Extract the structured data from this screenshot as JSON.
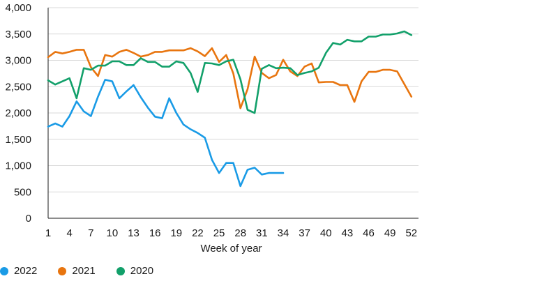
{
  "chart_data": {
    "type": "line",
    "title": "",
    "xlabel": "Week of year",
    "ylabel": "",
    "xlim": [
      1,
      53
    ],
    "ylim": [
      0,
      4000
    ],
    "grid": "horizontal",
    "legend_position": "bottom-left",
    "x_ticks": [
      1,
      4,
      7,
      10,
      13,
      16,
      19,
      22,
      25,
      28,
      31,
      34,
      37,
      40,
      43,
      46,
      49,
      52
    ],
    "x_tick_labels": [
      "1",
      "4",
      "7",
      "10",
      "13",
      "16",
      "19",
      "22",
      "25",
      "28",
      "31",
      "34",
      "37",
      "40",
      "43",
      "46",
      "49",
      "52"
    ],
    "y_ticks": [
      0,
      500,
      1000,
      1500,
      2000,
      2500,
      3000,
      3500,
      4000
    ],
    "y_tick_labels": [
      "0",
      "500",
      "1,000",
      "1,500",
      "2,000",
      "2,500",
      "3,000",
      "3,500",
      "4,000"
    ],
    "series": [
      {
        "name": "2022",
        "color": "#1a9be6",
        "x": [
          1,
          2,
          3,
          4,
          5,
          6,
          7,
          8,
          9,
          10,
          11,
          12,
          13,
          14,
          15,
          16,
          17,
          18,
          19,
          20,
          21,
          22,
          23,
          24,
          25,
          26,
          27,
          28,
          29,
          30,
          31,
          32,
          33,
          34
        ],
        "values": [
          1740,
          1800,
          1740,
          1940,
          2220,
          2030,
          1940,
          2310,
          2630,
          2600,
          2280,
          2410,
          2530,
          2300,
          2100,
          1930,
          1900,
          2280,
          2000,
          1780,
          1690,
          1620,
          1530,
          1110,
          860,
          1050,
          1050,
          610,
          920,
          960,
          830,
          860,
          860,
          860
        ]
      },
      {
        "name": "2021",
        "color": "#e8750f",
        "x": [
          1,
          2,
          3,
          4,
          5,
          6,
          7,
          8,
          9,
          10,
          11,
          12,
          13,
          14,
          15,
          16,
          17,
          18,
          19,
          20,
          21,
          22,
          23,
          24,
          25,
          26,
          27,
          28,
          29,
          30,
          31,
          32,
          33,
          34,
          35,
          36,
          37,
          38,
          39,
          40,
          41,
          42,
          43,
          44,
          45,
          46,
          47,
          48,
          49,
          50,
          51,
          52
        ],
        "values": [
          3060,
          3160,
          3130,
          3160,
          3200,
          3200,
          2870,
          2700,
          3100,
          3070,
          3160,
          3200,
          3140,
          3070,
          3100,
          3160,
          3160,
          3190,
          3190,
          3190,
          3230,
          3170,
          3080,
          3230,
          2970,
          3100,
          2750,
          2090,
          2450,
          3070,
          2760,
          2660,
          2720,
          3010,
          2790,
          2700,
          2880,
          2940,
          2580,
          2590,
          2590,
          2530,
          2530,
          2210,
          2600,
          2780,
          2780,
          2820,
          2820,
          2790,
          2550,
          2310
        ]
      },
      {
        "name": "2020",
        "color": "#12a06a",
        "x": [
          1,
          2,
          3,
          4,
          5,
          6,
          7,
          8,
          9,
          10,
          11,
          12,
          13,
          14,
          15,
          16,
          17,
          18,
          19,
          20,
          21,
          22,
          23,
          24,
          25,
          26,
          27,
          28,
          29,
          30,
          31,
          32,
          33,
          34,
          35,
          36,
          37,
          38,
          39,
          40,
          41,
          42,
          43,
          44,
          45,
          46,
          47,
          48,
          49,
          50,
          51,
          52
        ],
        "values": [
          2620,
          2540,
          2600,
          2660,
          2280,
          2850,
          2820,
          2900,
          2900,
          2980,
          2980,
          2910,
          2910,
          3040,
          2970,
          2970,
          2880,
          2880,
          2980,
          2950,
          2760,
          2400,
          2950,
          2940,
          2910,
          2980,
          3010,
          2640,
          2060,
          2000,
          2840,
          2910,
          2850,
          2860,
          2850,
          2720,
          2760,
          2790,
          2860,
          3140,
          3330,
          3300,
          3390,
          3360,
          3360,
          3450,
          3450,
          3490,
          3490,
          3510,
          3550,
          3480
        ]
      }
    ]
  }
}
